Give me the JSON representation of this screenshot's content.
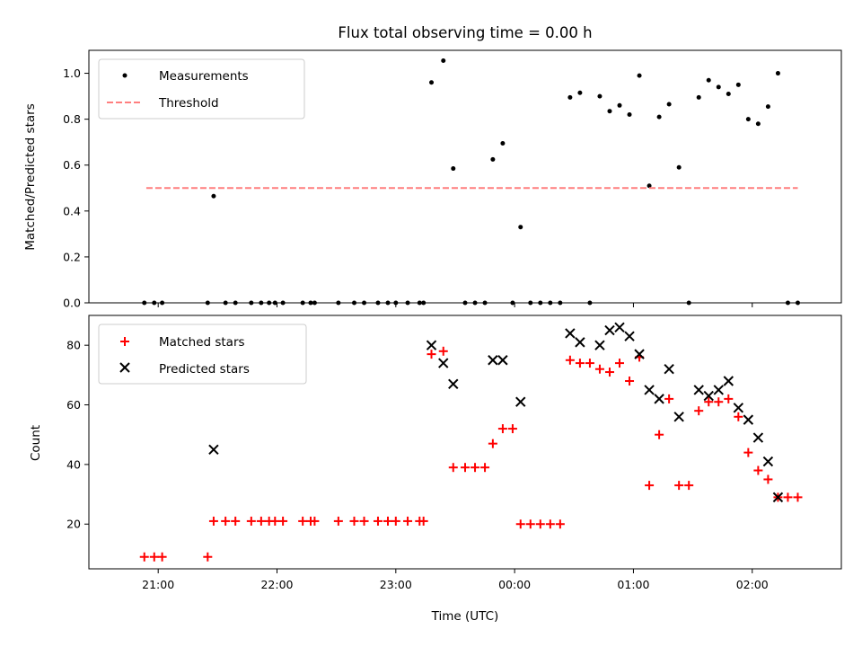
{
  "chart_data": [
    {
      "type": "scatter",
      "title": "Flux total observing time = 0.00 h",
      "xlabel": "",
      "ylabel": "Matched/Predicted stars",
      "ylim": [
        0,
        1.1
      ],
      "yticks": [
        0.0,
        0.2,
        0.4,
        0.6,
        0.8,
        1.0
      ],
      "ytick_labels": [
        "0.0",
        "0.2",
        "0.4",
        "0.6",
        "0.8",
        "1.0"
      ],
      "xlim": [
        "20:25",
        "02:45"
      ],
      "xticks": [
        "21:00",
        "22:00",
        "23:00",
        "00:00",
        "01:00",
        "02:00"
      ],
      "grid": false,
      "legend_position": "upper-left",
      "series": [
        {
          "name": "Measurements",
          "marker": "dot",
          "color": "#000000",
          "points": [
            [
              "20:53",
              0
            ],
            [
              "20:58",
              0
            ],
            [
              "21:02",
              0
            ],
            [
              "21:25",
              0
            ],
            [
              "21:28",
              0.465
            ],
            [
              "21:34",
              0
            ],
            [
              "21:39",
              0
            ],
            [
              "21:47",
              0
            ],
            [
              "21:52",
              0
            ],
            [
              "21:56",
              0
            ],
            [
              "21:59",
              0
            ],
            [
              "22:03",
              0
            ],
            [
              "22:13",
              0
            ],
            [
              "22:17",
              0
            ],
            [
              "22:19",
              0
            ],
            [
              "22:31",
              0
            ],
            [
              "22:39",
              0
            ],
            [
              "22:44",
              0
            ],
            [
              "22:51",
              0
            ],
            [
              "22:56",
              0
            ],
            [
              "23:00",
              0
            ],
            [
              "23:06",
              0
            ],
            [
              "23:12",
              0
            ],
            [
              "23:14",
              0
            ],
            [
              "23:18",
              0.96
            ],
            [
              "23:24",
              1.055
            ],
            [
              "23:29",
              0.585
            ],
            [
              "23:35",
              0
            ],
            [
              "23:40",
              0
            ],
            [
              "23:45",
              0
            ],
            [
              "23:49",
              0.625
            ],
            [
              "23:54",
              0.695
            ],
            [
              "23:59",
              0
            ],
            [
              "00:03",
              0.33
            ],
            [
              "00:08",
              0
            ],
            [
              "00:13",
              0
            ],
            [
              "00:18",
              0
            ],
            [
              "00:23",
              0
            ],
            [
              "00:28",
              0.895
            ],
            [
              "00:33",
              0.915
            ],
            [
              "00:38",
              0
            ],
            [
              "00:43",
              0.9
            ],
            [
              "00:48",
              0.835
            ],
            [
              "00:53",
              0.86
            ],
            [
              "00:58",
              0.82
            ],
            [
              "01:03",
              0.99
            ],
            [
              "01:08",
              0.51
            ],
            [
              "01:13",
              0.81
            ],
            [
              "01:18",
              0.865
            ],
            [
              "01:23",
              0.59
            ],
            [
              "01:28",
              0
            ],
            [
              "01:33",
              0.895
            ],
            [
              "01:38",
              0.97
            ],
            [
              "01:43",
              0.94
            ],
            [
              "01:48",
              0.91
            ],
            [
              "01:53",
              0.95
            ],
            [
              "01:58",
              0.8
            ],
            [
              "02:03",
              0.78
            ],
            [
              "02:08",
              0.855
            ],
            [
              "02:13",
              1.0
            ],
            [
              "02:18",
              0
            ],
            [
              "02:23",
              0
            ]
          ]
        },
        {
          "name": "Threshold",
          "marker": "dashed-line",
          "color": "#ff7f7f",
          "points": [
            [
              "20:54",
              0.5
            ],
            [
              "02:23",
              0.5
            ]
          ]
        }
      ]
    },
    {
      "type": "scatter",
      "title": "",
      "xlabel": "Time (UTC)",
      "ylabel": "Count",
      "ylim": [
        5,
        90
      ],
      "yticks": [
        20,
        40,
        60,
        80
      ],
      "ytick_labels": [
        "20",
        "40",
        "60",
        "80"
      ],
      "xlim": [
        "20:25",
        "02:45"
      ],
      "xticks": [
        "21:00",
        "22:00",
        "23:00",
        "00:00",
        "01:00",
        "02:00"
      ],
      "xtick_labels": [
        "21:00",
        "22:00",
        "23:00",
        "00:00",
        "01:00",
        "02:00"
      ],
      "grid": false,
      "legend_position": "upper-left",
      "series": [
        {
          "name": "Matched stars",
          "marker": "plus",
          "color": "#ff0000",
          "points": [
            [
              "20:53",
              9
            ],
            [
              "20:58",
              9
            ],
            [
              "21:02",
              9
            ],
            [
              "21:25",
              9
            ],
            [
              "21:28",
              21
            ],
            [
              "21:34",
              21
            ],
            [
              "21:39",
              21
            ],
            [
              "21:47",
              21
            ],
            [
              "21:52",
              21
            ],
            [
              "21:56",
              21
            ],
            [
              "21:59",
              21
            ],
            [
              "22:03",
              21
            ],
            [
              "22:13",
              21
            ],
            [
              "22:17",
              21
            ],
            [
              "22:19",
              21
            ],
            [
              "22:31",
              21
            ],
            [
              "22:39",
              21
            ],
            [
              "22:44",
              21
            ],
            [
              "22:51",
              21
            ],
            [
              "22:56",
              21
            ],
            [
              "23:00",
              21
            ],
            [
              "23:06",
              21
            ],
            [
              "23:12",
              21
            ],
            [
              "23:14",
              21
            ],
            [
              "23:18",
              77
            ],
            [
              "23:24",
              78
            ],
            [
              "23:29",
              39
            ],
            [
              "23:35",
              39
            ],
            [
              "23:40",
              39
            ],
            [
              "23:45",
              39
            ],
            [
              "23:49",
              47
            ],
            [
              "23:54",
              52
            ],
            [
              "23:59",
              52
            ],
            [
              "00:03",
              20
            ],
            [
              "00:08",
              20
            ],
            [
              "00:13",
              20
            ],
            [
              "00:18",
              20
            ],
            [
              "00:23",
              20
            ],
            [
              "00:28",
              75
            ],
            [
              "00:33",
              74
            ],
            [
              "00:38",
              74
            ],
            [
              "00:43",
              72
            ],
            [
              "00:48",
              71
            ],
            [
              "00:53",
              74
            ],
            [
              "00:58",
              68
            ],
            [
              "01:03",
              76
            ],
            [
              "01:08",
              33
            ],
            [
              "01:13",
              50
            ],
            [
              "01:18",
              62
            ],
            [
              "01:23",
              33
            ],
            [
              "01:28",
              33
            ],
            [
              "01:33",
              58
            ],
            [
              "01:38",
              61
            ],
            [
              "01:43",
              61
            ],
            [
              "01:48",
              62
            ],
            [
              "01:53",
              56
            ],
            [
              "01:58",
              44
            ],
            [
              "02:03",
              38
            ],
            [
              "02:08",
              35
            ],
            [
              "02:13",
              29
            ],
            [
              "02:18",
              29
            ],
            [
              "02:23",
              29
            ]
          ]
        },
        {
          "name": "Predicted stars",
          "marker": "x",
          "color": "#000000",
          "points": [
            [
              "21:28",
              45
            ],
            [
              "23:18",
              80
            ],
            [
              "23:24",
              74
            ],
            [
              "23:29",
              67
            ],
            [
              "23:49",
              75
            ],
            [
              "23:54",
              75
            ],
            [
              "00:03",
              61
            ],
            [
              "00:28",
              84
            ],
            [
              "00:33",
              81
            ],
            [
              "00:43",
              80
            ],
            [
              "00:48",
              85
            ],
            [
              "00:53",
              86
            ],
            [
              "00:58",
              83
            ],
            [
              "01:03",
              77
            ],
            [
              "01:08",
              65
            ],
            [
              "01:13",
              62
            ],
            [
              "01:18",
              72
            ],
            [
              "01:23",
              56
            ],
            [
              "01:33",
              65
            ],
            [
              "01:38",
              63
            ],
            [
              "01:43",
              65
            ],
            [
              "01:48",
              68
            ],
            [
              "01:53",
              59
            ],
            [
              "01:58",
              55
            ],
            [
              "02:03",
              49
            ],
            [
              "02:08",
              41
            ],
            [
              "02:13",
              29
            ]
          ]
        }
      ]
    }
  ]
}
